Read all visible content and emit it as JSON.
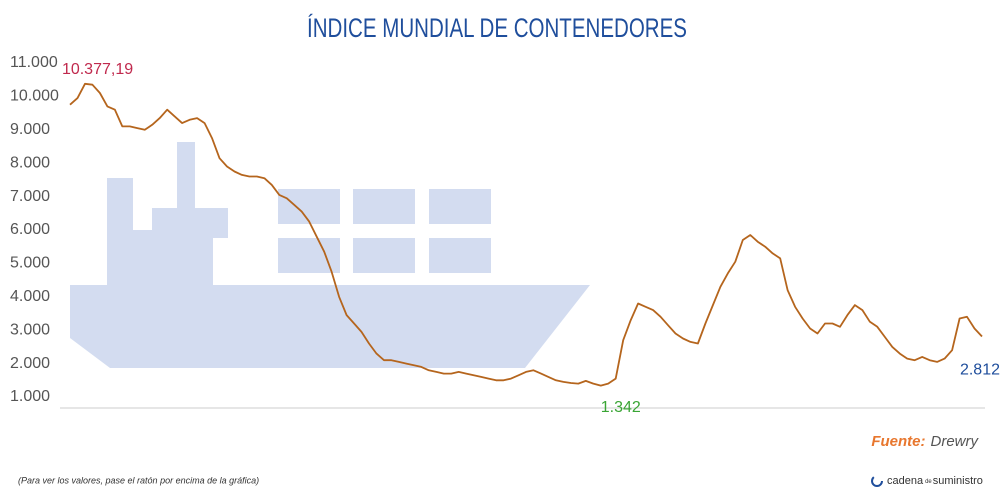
{
  "chart_data": {
    "type": "line",
    "title": "ÍNDICE MUNDIAL DE CONTENEDORES",
    "values": [
      9750,
      9950,
      10377.19,
      10350,
      10100,
      9700,
      9600,
      9100,
      9100,
      9050,
      9000,
      9150,
      9350,
      9600,
      9400,
      9200,
      9300,
      9350,
      9200,
      8750,
      8150,
      7900,
      7750,
      7650,
      7600,
      7600,
      7550,
      7350,
      7050,
      6950,
      6750,
      6550,
      6250,
      5800,
      5350,
      4750,
      4000,
      3450,
      3200,
      2950,
      2600,
      2300,
      2100,
      2100,
      2050,
      2000,
      1950,
      1900,
      1800,
      1750,
      1700,
      1700,
      1750,
      1700,
      1650,
      1600,
      1550,
      1500,
      1500,
      1550,
      1650,
      1750,
      1800,
      1700,
      1600,
      1500,
      1450,
      1420,
      1400,
      1480,
      1400,
      1342,
      1400,
      1550,
      2700,
      3300,
      3800,
      3700,
      3600,
      3400,
      3150,
      2900,
      2750,
      2650,
      2600,
      3200,
      3750,
      4300,
      4700,
      5050,
      5700,
      5850,
      5650,
      5500,
      5300,
      5150,
      4200,
      3700,
      3350,
      3050,
      2900,
      3200,
      3200,
      3100,
      3450,
      3750,
      3600,
      3250,
      3100,
      2800,
      2500,
      2300,
      2150,
      2100,
      2200,
      2100,
      2050,
      2150,
      2400,
      3350,
      3400,
      3050,
      2812
    ],
    "value_labels": [
      null,
      null,
      "10.377,19",
      null,
      null,
      null,
      null,
      null,
      null,
      null,
      null,
      null,
      null,
      null,
      null,
      null,
      null,
      null,
      null,
      null,
      null,
      null,
      null,
      null,
      null,
      null,
      null,
      null,
      null,
      null,
      null,
      null,
      null,
      null,
      null,
      null,
      null,
      null,
      null,
      null,
      null,
      null,
      null,
      null,
      null,
      null,
      null,
      null,
      null,
      null,
      null,
      null,
      null,
      null,
      null,
      null,
      null,
      null,
      null,
      null,
      null,
      null,
      null,
      null,
      null,
      null,
      null,
      null,
      null,
      null,
      null,
      "1.342",
      null,
      null,
      null,
      null,
      null,
      null,
      null,
      null,
      null,
      null,
      null,
      null,
      null,
      null,
      null,
      null,
      null,
      null,
      null,
      null,
      null,
      null,
      null,
      null,
      null,
      null,
      null,
      null,
      null,
      null,
      null,
      null,
      null,
      null,
      null,
      null,
      null,
      null,
      null,
      null,
      null,
      null,
      null,
      null,
      null,
      null,
      null,
      null,
      null,
      null,
      "2.812"
    ],
    "value_label_colors": [
      null,
      null,
      "#c0294d",
      null,
      null,
      null,
      null,
      null,
      null,
      null,
      null,
      null,
      null,
      null,
      null,
      null,
      null,
      null,
      null,
      null,
      null,
      null,
      null,
      null,
      null,
      null,
      null,
      null,
      null,
      null,
      null,
      null,
      null,
      null,
      null,
      null,
      null,
      null,
      null,
      null,
      null,
      null,
      null,
      null,
      null,
      null,
      null,
      null,
      null,
      null,
      null,
      null,
      null,
      null,
      null,
      null,
      null,
      null,
      null,
      null,
      null,
      null,
      null,
      null,
      null,
      null,
      null,
      null,
      null,
      null,
      null,
      "#3aa535",
      null,
      null,
      null,
      null,
      null,
      null,
      null,
      null,
      null,
      null,
      null,
      null,
      null,
      null,
      null,
      null,
      null,
      null,
      null,
      null,
      null,
      null,
      null,
      null,
      null,
      null,
      null,
      null,
      null,
      null,
      null,
      null,
      null,
      null,
      null,
      null,
      null,
      null,
      null,
      null,
      null,
      null,
      null,
      null,
      null,
      null,
      null,
      null,
      null,
      null,
      "#1f4e9c"
    ],
    "color": "#b5651d",
    "ylim": [
      700,
      11200
    ],
    "yticks": [
      {
        "value": 1000,
        "label": "1.000"
      },
      {
        "value": 2000,
        "label": "2.000"
      },
      {
        "value": 3000,
        "label": "3.000"
      },
      {
        "value": 4000,
        "label": "4.000"
      },
      {
        "value": 5000,
        "label": "5.000"
      },
      {
        "value": 6000,
        "label": "6.000"
      },
      {
        "value": 7000,
        "label": "7.000"
      },
      {
        "value": 8000,
        "label": "8.000"
      },
      {
        "value": 9000,
        "label": "9.000"
      },
      {
        "value": 10000,
        "label": "10.000"
      },
      {
        "value": 11000,
        "label": "11.000"
      }
    ],
    "grid": false,
    "source_label": "Fuente:",
    "source": "Drewry",
    "note": "(Para ver los valores, pase el ratón por encima de la gráfica)",
    "logo": [
      "cadena",
      "de",
      "suministro"
    ]
  }
}
